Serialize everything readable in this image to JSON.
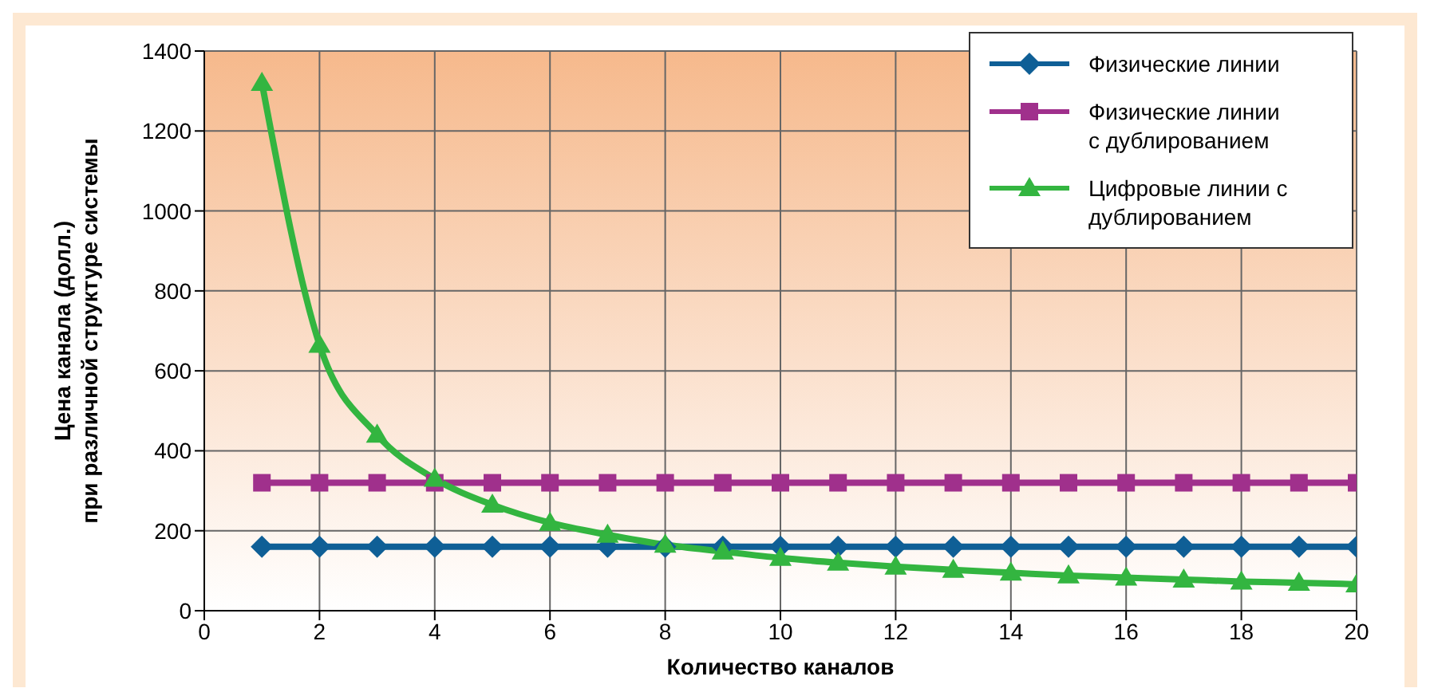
{
  "chart_data": {
    "type": "line",
    "xlabel": "Количество каналов",
    "ylabel": "Цена канала (долл.)\nпри различной структуре системы",
    "x": [
      1,
      2,
      3,
      4,
      5,
      6,
      7,
      8,
      9,
      10,
      11,
      12,
      13,
      14,
      15,
      16,
      17,
      18,
      19,
      20
    ],
    "xlim": [
      0,
      20
    ],
    "xticks": [
      0,
      2,
      4,
      6,
      8,
      10,
      12,
      14,
      16,
      18,
      20
    ],
    "ylim": [
      0,
      1400
    ],
    "yticks": [
      0,
      200,
      400,
      600,
      800,
      1000,
      1200,
      1400
    ],
    "grid": true,
    "legend": "top right",
    "line_style": "solid",
    "series": [
      {
        "name": "Физические линии",
        "color": "#0f5f96",
        "marker": "diamond",
        "values": [
          160,
          160,
          160,
          160,
          160,
          160,
          160,
          160,
          160,
          160,
          160,
          160,
          160,
          160,
          160,
          160,
          160,
          160,
          160,
          160
        ]
      },
      {
        "name": "Физические линии с дублированием",
        "color": "#a0308c",
        "marker": "square",
        "values": [
          320,
          320,
          320,
          320,
          320,
          320,
          320,
          320,
          320,
          320,
          320,
          320,
          320,
          320,
          320,
          320,
          320,
          320,
          320,
          320
        ]
      },
      {
        "name": "Цифровые линии с дублированием",
        "color": "#33b540",
        "marker": "triangle",
        "values": [
          1320,
          665,
          440,
          330,
          265,
          220,
          190,
          165,
          148,
          132,
          120,
          110,
          102,
          95,
          88,
          83,
          78,
          73,
          70,
          66
        ]
      }
    ]
  }
}
